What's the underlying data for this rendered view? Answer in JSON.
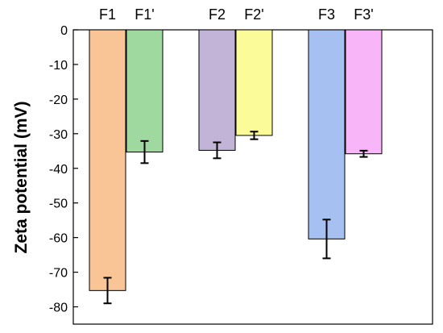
{
  "chart_data": {
    "type": "bar",
    "ylabel": "Zeta potential (mV)",
    "ylim": [
      -85,
      0
    ],
    "yticks": [
      0,
      -10,
      -20,
      -30,
      -40,
      -50,
      -60,
      -70,
      -80
    ],
    "grid": false,
    "legend": "none",
    "bars": [
      {
        "label": "F1",
        "value": -75.3,
        "error": 3.7,
        "color": "#f9c496"
      },
      {
        "label": "F1'",
        "value": -35.3,
        "error": 3.2,
        "color": "#a0d9a0"
      },
      {
        "label": "F2",
        "value": -34.8,
        "error": 2.3,
        "color": "#c2b4d6"
      },
      {
        "label": "F2'",
        "value": -30.5,
        "error": 1.1,
        "color": "#fbfb9a"
      },
      {
        "label": "F3",
        "value": -60.4,
        "error": 5.6,
        "color": "#a6c0f2"
      },
      {
        "label": "F3'",
        "value": -35.8,
        "error": 0.9,
        "color": "#f8b5f8"
      }
    ]
  }
}
